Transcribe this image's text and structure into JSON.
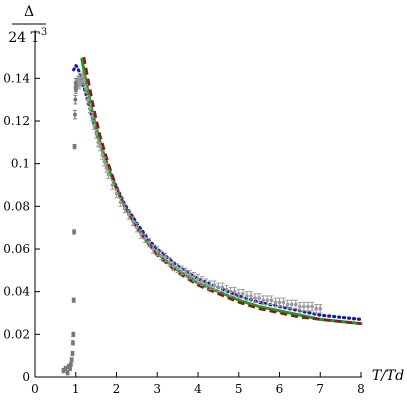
{
  "chart_data": {
    "type": "scatter",
    "xlabel": "T/Td",
    "ylabel_numerator": "Δ",
    "ylabel_denominator": "24 T",
    "ylabel_denominator_exp": "3",
    "xlim": [
      0,
      8
    ],
    "ylim": [
      0,
      0.15
    ],
    "xticks": [
      0,
      1,
      2,
      3,
      4,
      5,
      6,
      7,
      8
    ],
    "yticks": [
      0,
      0.02,
      0.04,
      0.06,
      0.08,
      0.1,
      0.12,
      0.14
    ],
    "ytick_labels": [
      "0",
      "0.02",
      "0.04",
      "0.06",
      "0.08",
      "0.1",
      "0.12",
      "0.14"
    ],
    "grid": false,
    "points_dark": {
      "color": "#777777",
      "x": [
        0.7,
        0.75,
        0.8,
        0.83,
        0.86,
        0.88,
        0.9,
        0.92,
        0.93,
        0.94,
        0.95,
        0.96,
        0.97,
        0.98,
        0.99,
        1.0,
        1.0,
        1.0
      ],
      "y": [
        0.003,
        0.004,
        0.002,
        0.005,
        0.004,
        0.006,
        0.008,
        0.011,
        0.016,
        0.02,
        0.036,
        0.068,
        0.108,
        0.123,
        0.13,
        0.135,
        0.138,
        0.136
      ],
      "err": [
        0.001,
        0.001,
        0.001,
        0.001,
        0.001,
        0.001,
        0.001,
        0.001,
        0.001,
        0.001,
        0.001,
        0.001,
        0.001,
        0.002,
        0.002,
        0.002,
        0.002,
        0.002
      ]
    },
    "points_light": {
      "color": "#9a9a9a",
      "x": [
        1.02,
        1.05,
        1.08,
        1.1,
        1.13,
        1.17,
        1.2,
        1.25,
        1.3,
        1.35,
        1.4,
        1.45,
        1.5,
        1.55,
        1.6,
        1.65,
        1.7,
        1.75,
        1.8,
        1.9,
        2.0,
        2.1,
        2.2,
        2.3,
        2.4,
        2.5,
        2.6,
        2.7,
        2.8,
        2.9,
        3.0,
        3.1,
        3.2,
        3.3,
        3.4,
        3.5,
        3.6,
        3.7,
        3.8,
        3.9,
        4.0,
        4.1,
        4.2,
        4.3,
        4.4,
        4.5,
        4.6,
        4.7,
        4.8,
        4.9,
        5.0,
        5.1,
        5.2,
        5.3,
        5.4,
        5.5,
        5.6,
        5.7,
        5.8,
        5.9,
        6.0,
        6.1,
        6.2,
        6.3,
        6.4,
        6.5,
        6.6,
        6.7,
        6.8,
        6.9,
        7.0
      ],
      "y": [
        0.136,
        0.139,
        0.137,
        0.14,
        0.138,
        0.141,
        0.139,
        0.135,
        0.13,
        0.126,
        0.122,
        0.118,
        0.114,
        0.11,
        0.108,
        0.104,
        0.101,
        0.098,
        0.095,
        0.09,
        0.086,
        0.082,
        0.079,
        0.076,
        0.073,
        0.07,
        0.067,
        0.065,
        0.063,
        0.06,
        0.059,
        0.057,
        0.056,
        0.054,
        0.052,
        0.051,
        0.05,
        0.049,
        0.048,
        0.047,
        0.046,
        0.045,
        0.044,
        0.043,
        0.043,
        0.042,
        0.042,
        0.041,
        0.04,
        0.04,
        0.039,
        0.039,
        0.038,
        0.038,
        0.037,
        0.037,
        0.036,
        0.036,
        0.036,
        0.035,
        0.035,
        0.035,
        0.034,
        0.034,
        0.034,
        0.033,
        0.033,
        0.033,
        0.033,
        0.032,
        0.032
      ],
      "err": 0.002
    },
    "series": [
      {
        "style": "dotted",
        "color": "#1a1aa8",
        "x": [
          0.95,
          1.0,
          1.05,
          1.1,
          1.2,
          1.3,
          1.4,
          1.5,
          1.6,
          1.8,
          2.0,
          2.2,
          2.5,
          2.8,
          3.0,
          3.5,
          4.0,
          4.5,
          5.0,
          5.5,
          6.0,
          6.5,
          7.0,
          7.5,
          8.0
        ],
        "y": [
          0.144,
          0.146,
          0.145,
          0.142,
          0.136,
          0.129,
          0.122,
          0.115,
          0.109,
          0.098,
          0.089,
          0.081,
          0.072,
          0.064,
          0.06,
          0.052,
          0.046,
          0.042,
          0.038,
          0.035,
          0.033,
          0.031,
          0.029,
          0.028,
          0.027
        ]
      },
      {
        "style": "solid",
        "color": "#1f9b1f",
        "x": [
          1.15,
          1.2,
          1.3,
          1.4,
          1.5,
          1.6,
          1.8,
          2.0,
          2.2,
          2.5,
          2.8,
          3.0,
          3.5,
          4.0,
          4.5,
          5.0,
          5.5,
          6.0,
          6.5,
          7.0,
          7.5,
          8.0
        ],
        "y": [
          0.149,
          0.144,
          0.134,
          0.125,
          0.117,
          0.11,
          0.098,
          0.088,
          0.08,
          0.07,
          0.062,
          0.058,
          0.05,
          0.044,
          0.04,
          0.036,
          0.033,
          0.031,
          0.029,
          0.027,
          0.026,
          0.025
        ]
      },
      {
        "style": "dashed",
        "color": "#8b1a1a",
        "x": [
          1.2,
          1.3,
          1.4,
          1.5,
          1.6,
          1.8,
          2.0,
          2.2,
          2.5,
          2.8,
          3.0,
          3.5,
          4.0,
          4.5,
          5.0,
          5.5,
          6.0,
          6.5,
          7.0,
          7.5,
          8.0
        ],
        "y": [
          0.15,
          0.14,
          0.13,
          0.121,
          0.113,
          0.1,
          0.089,
          0.08,
          0.07,
          0.062,
          0.057,
          0.049,
          0.043,
          0.039,
          0.035,
          0.032,
          0.03,
          0.028,
          0.027,
          0.026,
          0.025
        ]
      }
    ]
  }
}
